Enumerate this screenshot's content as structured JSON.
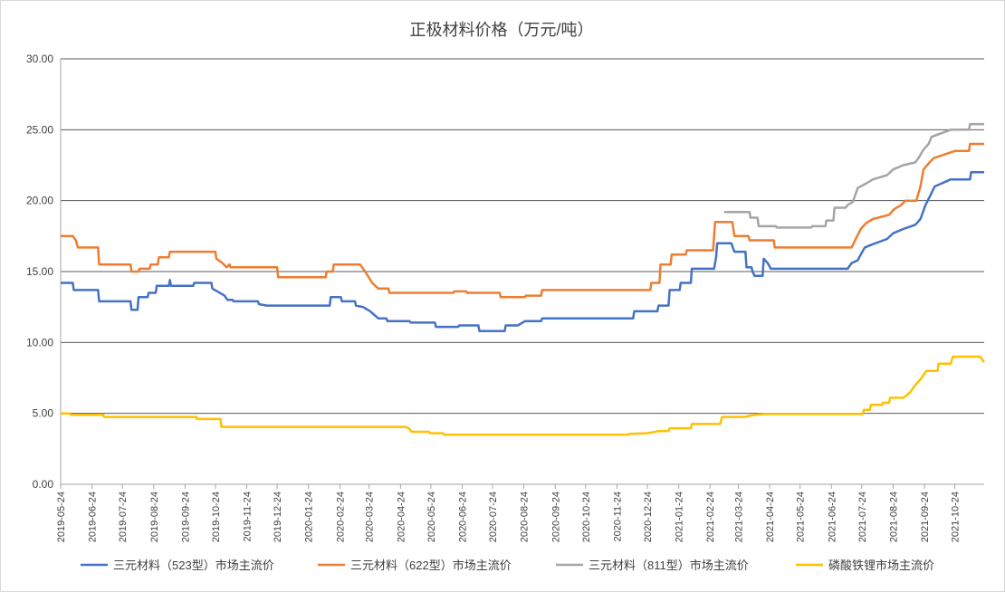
{
  "chart_data": {
    "type": "line",
    "title": "正极材料价格（万元/吨）",
    "xlabel": "",
    "ylabel": "",
    "ylim": [
      0,
      30
    ],
    "grid": "horizontal",
    "legend_position": "bottom",
    "y_ticks": [
      "0.00",
      "5.00",
      "10.00",
      "15.00",
      "20.00",
      "25.00",
      "30.00"
    ],
    "x_ticks": [
      "2019-05-24",
      "2019-06-24",
      "2019-07-24",
      "2019-08-24",
      "2019-09-24",
      "2019-10-24",
      "2019-11-24",
      "2019-12-24",
      "2020-01-24",
      "2020-02-24",
      "2020-03-24",
      "2020-04-24",
      "2020-05-24",
      "2020-06-24",
      "2020-07-24",
      "2020-08-24",
      "2020-09-24",
      "2020-10-24",
      "2020-11-24",
      "2020-12-24",
      "2021-01-24",
      "2021-02-24",
      "2021-03-24",
      "2021-04-24",
      "2021-05-24",
      "2021-06-24",
      "2021-07-24",
      "2021-08-24",
      "2021-09-24",
      "2021-10-24"
    ],
    "series": [
      {
        "name": "三元材料（523型）市场主流价",
        "color": "#4472c4",
        "points": [
          [
            "2019-05-24",
            14.2
          ],
          [
            "2019-06-05",
            14.2
          ],
          [
            "2019-06-06",
            13.7
          ],
          [
            "2019-06-30",
            13.7
          ],
          [
            "2019-07-01",
            12.9
          ],
          [
            "2019-08-01",
            12.9
          ],
          [
            "2019-08-02",
            12.3
          ],
          [
            "2019-08-08",
            12.3
          ],
          [
            "2019-08-09",
            13.2
          ],
          [
            "2019-08-18",
            13.2
          ],
          [
            "2019-08-19",
            13.5
          ],
          [
            "2019-08-26",
            13.5
          ],
          [
            "2019-08-27",
            14.0
          ],
          [
            "2019-09-08",
            14.0
          ],
          [
            "2019-09-09",
            14.4
          ],
          [
            "2019-09-10",
            14.0
          ],
          [
            "2019-10-02",
            14.0
          ],
          [
            "2019-10-03",
            14.2
          ],
          [
            "2019-10-20",
            14.2
          ],
          [
            "2019-10-21",
            13.8
          ],
          [
            "2019-11-02",
            13.3
          ],
          [
            "2019-11-05",
            13.0
          ],
          [
            "2019-11-10",
            13.0
          ],
          [
            "2019-11-11",
            12.9
          ],
          [
            "2019-12-05",
            12.9
          ],
          [
            "2019-12-06",
            12.7
          ],
          [
            "2019-12-14",
            12.6
          ],
          [
            "2020-02-14",
            12.6
          ],
          [
            "2020-02-15",
            13.2
          ],
          [
            "2020-02-25",
            13.2
          ],
          [
            "2020-02-26",
            12.9
          ],
          [
            "2020-03-10",
            12.9
          ],
          [
            "2020-03-11",
            12.6
          ],
          [
            "2020-03-18",
            12.5
          ],
          [
            "2020-03-25",
            12.2
          ],
          [
            "2020-04-02",
            11.7
          ],
          [
            "2020-04-10",
            11.7
          ],
          [
            "2020-04-11",
            11.5
          ],
          [
            "2020-05-03",
            11.5
          ],
          [
            "2020-05-04",
            11.4
          ],
          [
            "2020-05-28",
            11.4
          ],
          [
            "2020-05-29",
            11.1
          ],
          [
            "2020-06-20",
            11.1
          ],
          [
            "2020-06-21",
            11.2
          ],
          [
            "2020-07-10",
            11.2
          ],
          [
            "2020-07-11",
            10.8
          ],
          [
            "2020-08-05",
            10.8
          ],
          [
            "2020-08-06",
            11.2
          ],
          [
            "2020-08-18",
            11.2
          ],
          [
            "2020-08-25",
            11.5
          ],
          [
            "2020-09-10",
            11.5
          ],
          [
            "2020-09-11",
            11.7
          ],
          [
            "2020-12-10",
            11.7
          ],
          [
            "2020-12-11",
            12.2
          ],
          [
            "2021-01-03",
            12.2
          ],
          [
            "2021-01-04",
            12.6
          ],
          [
            "2021-01-14",
            12.6
          ],
          [
            "2021-01-15",
            13.7
          ],
          [
            "2021-01-25",
            13.7
          ],
          [
            "2021-01-26",
            14.2
          ],
          [
            "2021-02-05",
            14.2
          ],
          [
            "2021-02-06",
            15.2
          ],
          [
            "2021-02-28",
            15.2
          ],
          [
            "2021-03-02",
            16.0
          ],
          [
            "2021-03-03",
            17.0
          ],
          [
            "2021-03-17",
            17.0
          ],
          [
            "2021-03-20",
            16.4
          ],
          [
            "2021-03-31",
            16.4
          ],
          [
            "2021-04-01",
            15.3
          ],
          [
            "2021-04-06",
            15.3
          ],
          [
            "2021-04-07",
            15.0
          ],
          [
            "2021-04-09",
            14.7
          ],
          [
            "2021-04-17",
            14.7
          ],
          [
            "2021-04-18",
            15.9
          ],
          [
            "2021-04-22",
            15.6
          ],
          [
            "2021-04-25",
            15.2
          ],
          [
            "2021-07-10",
            15.2
          ],
          [
            "2021-07-14",
            15.6
          ],
          [
            "2021-07-20",
            15.8
          ],
          [
            "2021-07-23",
            16.2
          ],
          [
            "2021-07-27",
            16.7
          ],
          [
            "2021-08-03",
            16.9
          ],
          [
            "2021-08-18",
            17.3
          ],
          [
            "2021-08-24",
            17.7
          ],
          [
            "2021-09-03",
            18.0
          ],
          [
            "2021-09-15",
            18.3
          ],
          [
            "2021-09-20",
            18.7
          ],
          [
            "2021-09-25",
            19.7
          ],
          [
            "2021-09-30",
            20.4
          ],
          [
            "2021-10-04",
            21.0
          ],
          [
            "2021-10-20",
            21.5
          ],
          [
            "2021-11-08",
            21.5
          ],
          [
            "2021-11-09",
            22.0
          ],
          [
            "2021-11-22",
            22.0
          ]
        ]
      },
      {
        "name": "三元材料（622型）市场主流价",
        "color": "#ed7d31",
        "points": [
          [
            "2019-05-24",
            17.5
          ],
          [
            "2019-06-05",
            17.5
          ],
          [
            "2019-06-08",
            17.2
          ],
          [
            "2019-06-10",
            16.7
          ],
          [
            "2019-06-30",
            16.7
          ],
          [
            "2019-07-01",
            15.5
          ],
          [
            "2019-08-01",
            15.5
          ],
          [
            "2019-08-02",
            15.0
          ],
          [
            "2019-08-09",
            15.0
          ],
          [
            "2019-08-10",
            15.2
          ],
          [
            "2019-08-20",
            15.2
          ],
          [
            "2019-08-21",
            15.5
          ],
          [
            "2019-08-28",
            15.5
          ],
          [
            "2019-08-29",
            16.0
          ],
          [
            "2019-09-08",
            16.0
          ],
          [
            "2019-09-09",
            16.4
          ],
          [
            "2019-10-24",
            16.4
          ],
          [
            "2019-10-25",
            15.9
          ],
          [
            "2019-10-31",
            15.6
          ],
          [
            "2019-11-04",
            15.3
          ],
          [
            "2019-11-07",
            15.5
          ],
          [
            "2019-11-08",
            15.3
          ],
          [
            "2019-12-24",
            15.3
          ],
          [
            "2019-12-25",
            14.6
          ],
          [
            "2020-02-10",
            14.6
          ],
          [
            "2020-02-11",
            15.0
          ],
          [
            "2020-02-17",
            15.0
          ],
          [
            "2020-02-18",
            15.5
          ],
          [
            "2020-03-15",
            15.5
          ],
          [
            "2020-03-20",
            15.0
          ],
          [
            "2020-03-27",
            14.2
          ],
          [
            "2020-04-02",
            13.8
          ],
          [
            "2020-04-12",
            13.8
          ],
          [
            "2020-04-13",
            13.5
          ],
          [
            "2020-06-15",
            13.5
          ],
          [
            "2020-06-16",
            13.6
          ],
          [
            "2020-06-28",
            13.6
          ],
          [
            "2020-06-29",
            13.5
          ],
          [
            "2020-07-31",
            13.5
          ],
          [
            "2020-08-01",
            13.2
          ],
          [
            "2020-08-25",
            13.2
          ],
          [
            "2020-08-26",
            13.3
          ],
          [
            "2020-09-10",
            13.3
          ],
          [
            "2020-09-11",
            13.7
          ],
          [
            "2020-12-27",
            13.7
          ],
          [
            "2020-12-28",
            14.2
          ],
          [
            "2021-01-05",
            14.2
          ],
          [
            "2021-01-06",
            15.5
          ],
          [
            "2021-01-16",
            15.5
          ],
          [
            "2021-01-17",
            16.2
          ],
          [
            "2021-01-31",
            16.2
          ],
          [
            "2021-02-01",
            16.5
          ],
          [
            "2021-02-27",
            16.5
          ],
          [
            "2021-03-01",
            18.5
          ],
          [
            "2021-03-18",
            18.5
          ],
          [
            "2021-03-20",
            17.5
          ],
          [
            "2021-04-03",
            17.5
          ],
          [
            "2021-04-04",
            17.2
          ],
          [
            "2021-04-28",
            17.2
          ],
          [
            "2021-04-29",
            16.7
          ],
          [
            "2021-07-14",
            16.7
          ],
          [
            "2021-07-18",
            17.3
          ],
          [
            "2021-07-23",
            18.0
          ],
          [
            "2021-07-28",
            18.4
          ],
          [
            "2021-08-04",
            18.7
          ],
          [
            "2021-08-20",
            19.0
          ],
          [
            "2021-08-25",
            19.4
          ],
          [
            "2021-09-01",
            19.7
          ],
          [
            "2021-09-05",
            20.0
          ],
          [
            "2021-09-16",
            20.0
          ],
          [
            "2021-09-20",
            21.0
          ],
          [
            "2021-09-23",
            22.2
          ],
          [
            "2021-09-29",
            22.7
          ],
          [
            "2021-10-03",
            23.0
          ],
          [
            "2021-10-24",
            23.5
          ],
          [
            "2021-11-07",
            23.5
          ],
          [
            "2021-11-08",
            24.0
          ],
          [
            "2021-11-22",
            24.0
          ]
        ]
      },
      {
        "name": "三元材料（811型）市场主流价",
        "color": "#a5a5a5",
        "points": [
          [
            "2021-03-10",
            19.2
          ],
          [
            "2021-04-04",
            19.2
          ],
          [
            "2021-04-05",
            18.8
          ],
          [
            "2021-04-12",
            18.8
          ],
          [
            "2021-04-13",
            18.2
          ],
          [
            "2021-04-30",
            18.2
          ],
          [
            "2021-05-01",
            18.1
          ],
          [
            "2021-06-04",
            18.1
          ],
          [
            "2021-06-05",
            18.2
          ],
          [
            "2021-06-18",
            18.2
          ],
          [
            "2021-06-19",
            18.6
          ],
          [
            "2021-06-26",
            18.6
          ],
          [
            "2021-06-27",
            19.5
          ],
          [
            "2021-07-08",
            19.5
          ],
          [
            "2021-07-10",
            19.7
          ],
          [
            "2021-07-15",
            19.9
          ],
          [
            "2021-07-20",
            20.9
          ],
          [
            "2021-07-28",
            21.2
          ],
          [
            "2021-08-04",
            21.5
          ],
          [
            "2021-08-18",
            21.8
          ],
          [
            "2021-08-24",
            22.2
          ],
          [
            "2021-09-03",
            22.5
          ],
          [
            "2021-09-15",
            22.7
          ],
          [
            "2021-09-18",
            23.0
          ],
          [
            "2021-09-23",
            23.6
          ],
          [
            "2021-09-28",
            24.0
          ],
          [
            "2021-10-01",
            24.5
          ],
          [
            "2021-10-20",
            25.0
          ],
          [
            "2021-11-07",
            25.0
          ],
          [
            "2021-11-08",
            25.4
          ],
          [
            "2021-11-22",
            25.4
          ]
        ]
      },
      {
        "name": "磷酸铁锂市场主流价",
        "color": "#ffc000",
        "points": [
          [
            "2019-05-24",
            5.0
          ],
          [
            "2019-06-02",
            5.0
          ],
          [
            "2019-06-03",
            4.9
          ],
          [
            "2019-07-05",
            4.9
          ],
          [
            "2019-07-06",
            4.75
          ],
          [
            "2019-10-05",
            4.75
          ],
          [
            "2019-10-06",
            4.6
          ],
          [
            "2019-10-29",
            4.6
          ],
          [
            "2019-10-30",
            4.05
          ],
          [
            "2020-04-29",
            4.05
          ],
          [
            "2020-05-02",
            3.95
          ],
          [
            "2020-05-05",
            3.7
          ],
          [
            "2020-05-22",
            3.7
          ],
          [
            "2020-05-23",
            3.6
          ],
          [
            "2020-06-05",
            3.6
          ],
          [
            "2020-06-06",
            3.5
          ],
          [
            "2020-12-05",
            3.5
          ],
          [
            "2020-12-06",
            3.55
          ],
          [
            "2020-12-24",
            3.6
          ],
          [
            "2021-01-04",
            3.75
          ],
          [
            "2021-01-14",
            3.75
          ],
          [
            "2021-01-15",
            3.95
          ],
          [
            "2021-02-05",
            3.95
          ],
          [
            "2021-02-06",
            4.25
          ],
          [
            "2021-03-06",
            4.25
          ],
          [
            "2021-03-08",
            4.75
          ],
          [
            "2021-03-30",
            4.75
          ],
          [
            "2021-04-05",
            4.85
          ],
          [
            "2021-04-18",
            4.95
          ],
          [
            "2021-07-25",
            4.95
          ],
          [
            "2021-07-26",
            5.25
          ],
          [
            "2021-08-01",
            5.25
          ],
          [
            "2021-08-02",
            5.6
          ],
          [
            "2021-08-13",
            5.6
          ],
          [
            "2021-08-14",
            5.75
          ],
          [
            "2021-08-20",
            5.75
          ],
          [
            "2021-08-21",
            6.1
          ],
          [
            "2021-09-03",
            6.1
          ],
          [
            "2021-09-06",
            6.25
          ],
          [
            "2021-09-10",
            6.5
          ],
          [
            "2021-09-15",
            7.0
          ],
          [
            "2021-09-20",
            7.4
          ],
          [
            "2021-09-26",
            8.0
          ],
          [
            "2021-10-07",
            8.0
          ],
          [
            "2021-10-08",
            8.5
          ],
          [
            "2021-10-20",
            8.5
          ],
          [
            "2021-10-22",
            9.0
          ],
          [
            "2021-11-18",
            9.0
          ],
          [
            "2021-11-22",
            8.6
          ]
        ]
      }
    ]
  }
}
